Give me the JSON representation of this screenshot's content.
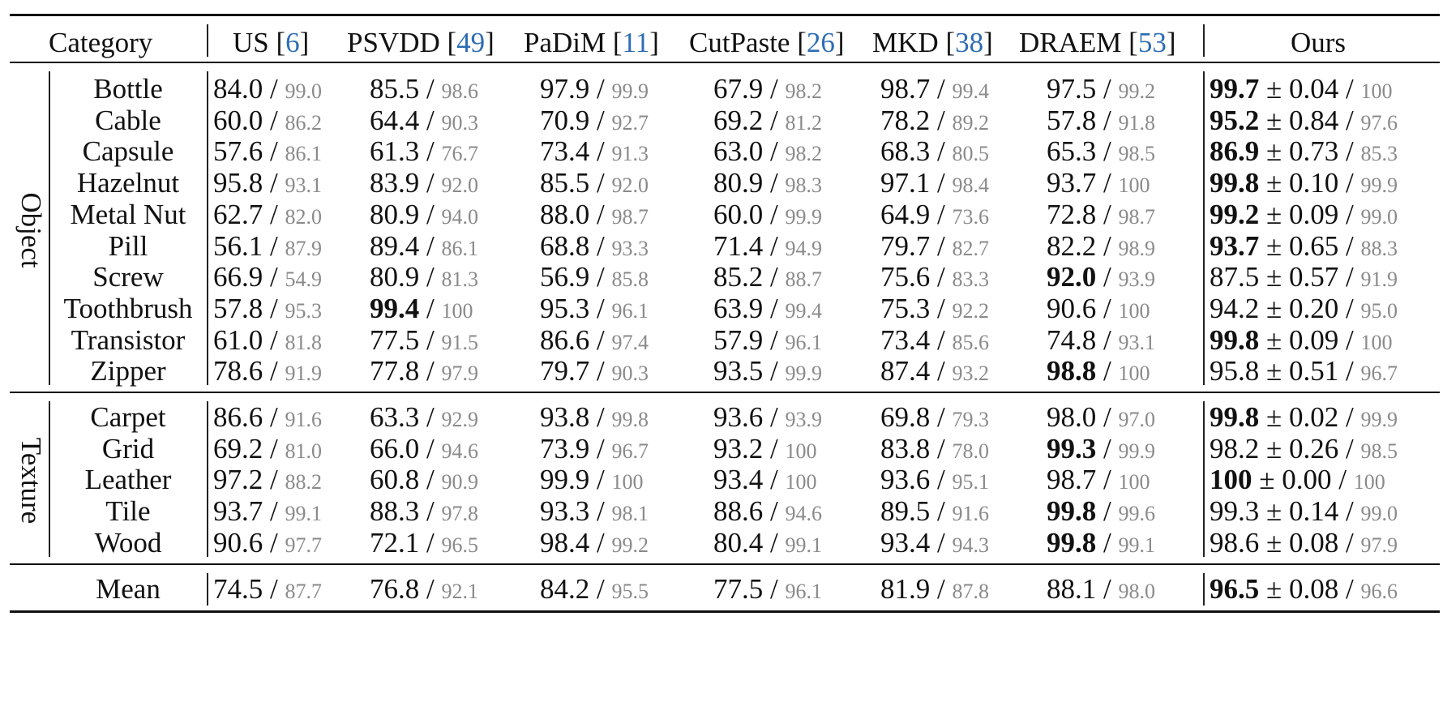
{
  "header": {
    "category": "Category",
    "methods": [
      {
        "name": "US ",
        "ref": "6"
      },
      {
        "name": "PSVDD ",
        "ref": "49"
      },
      {
        "name": "PaDiM ",
        "ref": "11"
      },
      {
        "name": "CutPaste ",
        "ref": "26"
      },
      {
        "name": "MKD ",
        "ref": "38"
      },
      {
        "name": "DRAEM ",
        "ref": "53"
      }
    ],
    "ours": "Ours"
  },
  "groups": [
    {
      "label": "Object",
      "rows": [
        {
          "category": "Bottle",
          "values": [
            [
              "84.0",
              "99.0",
              false
            ],
            [
              "85.5",
              "98.6",
              false
            ],
            [
              "97.9",
              "99.9",
              false
            ],
            [
              "67.9",
              "98.2",
              false
            ],
            [
              "98.7",
              "99.4",
              false
            ],
            [
              "97.5",
              "99.2",
              false
            ]
          ],
          "ours": {
            "main": "99.7",
            "std": "0.04",
            "sub": "100",
            "bold": true
          }
        },
        {
          "category": "Cable",
          "values": [
            [
              "60.0",
              "86.2",
              false
            ],
            [
              "64.4",
              "90.3",
              false
            ],
            [
              "70.9",
              "92.7",
              false
            ],
            [
              "69.2",
              "81.2",
              false
            ],
            [
              "78.2",
              "89.2",
              false
            ],
            [
              "57.8",
              "91.8",
              false
            ]
          ],
          "ours": {
            "main": "95.2",
            "std": "0.84",
            "sub": "97.6",
            "bold": true
          }
        },
        {
          "category": "Capsule",
          "values": [
            [
              "57.6",
              "86.1",
              false
            ],
            [
              "61.3",
              "76.7",
              false
            ],
            [
              "73.4",
              "91.3",
              false
            ],
            [
              "63.0",
              "98.2",
              false
            ],
            [
              "68.3",
              "80.5",
              false
            ],
            [
              "65.3",
              "98.5",
              false
            ]
          ],
          "ours": {
            "main": "86.9",
            "std": "0.73",
            "sub": "85.3",
            "bold": true
          }
        },
        {
          "category": "Hazelnut",
          "values": [
            [
              "95.8",
              "93.1",
              false
            ],
            [
              "83.9",
              "92.0",
              false
            ],
            [
              "85.5",
              "92.0",
              false
            ],
            [
              "80.9",
              "98.3",
              false
            ],
            [
              "97.1",
              "98.4",
              false
            ],
            [
              "93.7",
              "100",
              false
            ]
          ],
          "ours": {
            "main": "99.8",
            "std": "0.10",
            "sub": "99.9",
            "bold": true
          }
        },
        {
          "category": "Metal Nut",
          "values": [
            [
              "62.7",
              "82.0",
              false
            ],
            [
              "80.9",
              "94.0",
              false
            ],
            [
              "88.0",
              "98.7",
              false
            ],
            [
              "60.0",
              "99.9",
              false
            ],
            [
              "64.9",
              "73.6",
              false
            ],
            [
              "72.8",
              "98.7",
              false
            ]
          ],
          "ours": {
            "main": "99.2",
            "std": "0.09",
            "sub": "99.0",
            "bold": true
          }
        },
        {
          "category": "Pill",
          "values": [
            [
              "56.1",
              "87.9",
              false
            ],
            [
              "89.4",
              "86.1",
              false
            ],
            [
              "68.8",
              "93.3",
              false
            ],
            [
              "71.4",
              "94.9",
              false
            ],
            [
              "79.7",
              "82.7",
              false
            ],
            [
              "82.2",
              "98.9",
              false
            ]
          ],
          "ours": {
            "main": "93.7",
            "std": "0.65",
            "sub": "88.3",
            "bold": true
          }
        },
        {
          "category": "Screw",
          "values": [
            [
              "66.9",
              "54.9",
              false
            ],
            [
              "80.9",
              "81.3",
              false
            ],
            [
              "56.9",
              "85.8",
              false
            ],
            [
              "85.2",
              "88.7",
              false
            ],
            [
              "75.6",
              "83.3",
              false
            ],
            [
              "92.0",
              "93.9",
              true
            ]
          ],
          "ours": {
            "main": "87.5",
            "std": "0.57",
            "sub": "91.9",
            "bold": false
          }
        },
        {
          "category": "Toothbrush",
          "values": [
            [
              "57.8",
              "95.3",
              false
            ],
            [
              "99.4",
              "100",
              true
            ],
            [
              "95.3",
              "96.1",
              false
            ],
            [
              "63.9",
              "99.4",
              false
            ],
            [
              "75.3",
              "92.2",
              false
            ],
            [
              "90.6",
              "100",
              false
            ]
          ],
          "ours": {
            "main": "94.2",
            "std": "0.20",
            "sub": "95.0",
            "bold": false
          }
        },
        {
          "category": "Transistor",
          "values": [
            [
              "61.0",
              "81.8",
              false
            ],
            [
              "77.5",
              "91.5",
              false
            ],
            [
              "86.6",
              "97.4",
              false
            ],
            [
              "57.9",
              "96.1",
              false
            ],
            [
              "73.4",
              "85.6",
              false
            ],
            [
              "74.8",
              "93.1",
              false
            ]
          ],
          "ours": {
            "main": "99.8",
            "std": "0.09",
            "sub": "100",
            "bold": true
          }
        },
        {
          "category": "Zipper",
          "values": [
            [
              "78.6",
              "91.9",
              false
            ],
            [
              "77.8",
              "97.9",
              false
            ],
            [
              "79.7",
              "90.3",
              false
            ],
            [
              "93.5",
              "99.9",
              false
            ],
            [
              "87.4",
              "93.2",
              false
            ],
            [
              "98.8",
              "100",
              true
            ]
          ],
          "ours": {
            "main": "95.8",
            "std": "0.51",
            "sub": "96.7",
            "bold": false
          }
        }
      ]
    },
    {
      "label": "Texture",
      "rows": [
        {
          "category": "Carpet",
          "values": [
            [
              "86.6",
              "91.6",
              false
            ],
            [
              "63.3",
              "92.9",
              false
            ],
            [
              "93.8",
              "99.8",
              false
            ],
            [
              "93.6",
              "93.9",
              false
            ],
            [
              "69.8",
              "79.3",
              false
            ],
            [
              "98.0",
              "97.0",
              false
            ]
          ],
          "ours": {
            "main": "99.8",
            "std": "0.02",
            "sub": "99.9",
            "bold": true
          }
        },
        {
          "category": "Grid",
          "values": [
            [
              "69.2",
              "81.0",
              false
            ],
            [
              "66.0",
              "94.6",
              false
            ],
            [
              "73.9",
              "96.7",
              false
            ],
            [
              "93.2",
              "100",
              false
            ],
            [
              "83.8",
              "78.0",
              false
            ],
            [
              "99.3",
              "99.9",
              true
            ]
          ],
          "ours": {
            "main": "98.2",
            "std": "0.26",
            "sub": "98.5",
            "bold": false
          }
        },
        {
          "category": "Leather",
          "values": [
            [
              "97.2",
              "88.2",
              false
            ],
            [
              "60.8",
              "90.9",
              false
            ],
            [
              "99.9",
              "100",
              false
            ],
            [
              "93.4",
              "100",
              false
            ],
            [
              "93.6",
              "95.1",
              false
            ],
            [
              "98.7",
              "100",
              false
            ]
          ],
          "ours": {
            "main": "100",
            "std": "0.00",
            "sub": "100",
            "bold": true
          }
        },
        {
          "category": "Tile",
          "values": [
            [
              "93.7",
              "99.1",
              false
            ],
            [
              "88.3",
              "97.8",
              false
            ],
            [
              "93.3",
              "98.1",
              false
            ],
            [
              "88.6",
              "94.6",
              false
            ],
            [
              "89.5",
              "91.6",
              false
            ],
            [
              "99.8",
              "99.6",
              true
            ]
          ],
          "ours": {
            "main": "99.3",
            "std": "0.14",
            "sub": "99.0",
            "bold": false
          }
        },
        {
          "category": "Wood",
          "values": [
            [
              "90.6",
              "97.7",
              false
            ],
            [
              "72.1",
              "96.5",
              false
            ],
            [
              "98.4",
              "99.2",
              false
            ],
            [
              "80.4",
              "99.1",
              false
            ],
            [
              "93.4",
              "94.3",
              false
            ],
            [
              "99.8",
              "99.1",
              true
            ]
          ],
          "ours": {
            "main": "98.6",
            "std": "0.08",
            "sub": "97.9",
            "bold": false
          }
        }
      ]
    }
  ],
  "mean": {
    "category": "Mean",
    "values": [
      [
        "74.5",
        "87.7",
        false
      ],
      [
        "76.8",
        "92.1",
        false
      ],
      [
        "84.2",
        "95.5",
        false
      ],
      [
        "77.5",
        "96.1",
        false
      ],
      [
        "81.9",
        "87.8",
        false
      ],
      [
        "88.1",
        "98.0",
        false
      ]
    ],
    "ours": {
      "main": "96.5",
      "std": "0.08",
      "sub": "96.6",
      "bold": true
    }
  },
  "separators": {
    "slash": " / ",
    "pm": " ± "
  }
}
